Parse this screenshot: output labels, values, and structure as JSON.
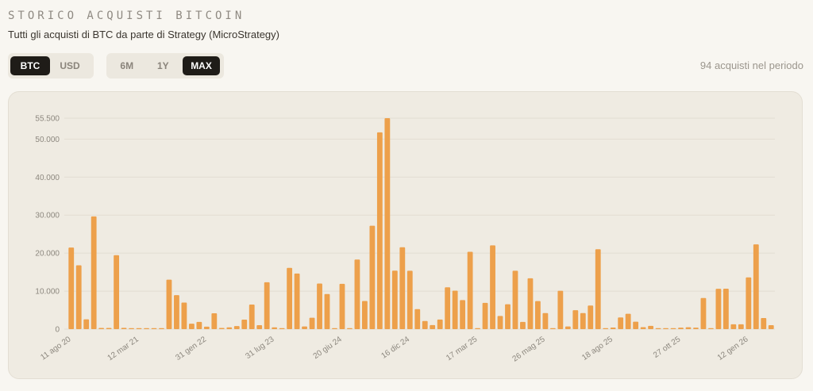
{
  "header": {
    "title": "STORICO ACQUISTI BITCOIN",
    "subtitle": "Tutti gli acquisti di BTC da parte di Strategy (MicroStrategy)"
  },
  "controls": {
    "unit": {
      "options": [
        "BTC",
        "USD"
      ],
      "selected": "BTC"
    },
    "range": {
      "options": [
        "6M",
        "1Y",
        "MAX"
      ],
      "selected": "MAX"
    }
  },
  "purchase_count": "94 acquisti nel periodo",
  "colors": {
    "bar": "#eda04b",
    "grid": "#e2ddd2",
    "active_button": "#1f1c18"
  },
  "chart_data": {
    "type": "bar",
    "title": "",
    "xlabel": "",
    "ylabel": "",
    "ylim": [
      0,
      55500
    ],
    "yticks": [
      0,
      10000,
      20000,
      30000,
      40000,
      50000,
      55500
    ],
    "ytick_labels": [
      "0",
      "10.000",
      "20.000",
      "30.000",
      "40.000",
      "50.000",
      "55.500"
    ],
    "xtick_labels": [
      {
        "index": 0,
        "label": "11 ago 20"
      },
      {
        "index": 9,
        "label": "12 mar 21"
      },
      {
        "index": 18,
        "label": "31 gen 22"
      },
      {
        "index": 27,
        "label": "31 lug 23"
      },
      {
        "index": 36,
        "label": "20 giu 24"
      },
      {
        "index": 45,
        "label": "16 dic 24"
      },
      {
        "index": 54,
        "label": "17 mar 25"
      },
      {
        "index": 63,
        "label": "26 mag 25"
      },
      {
        "index": 72,
        "label": "18 ago 25"
      },
      {
        "index": 81,
        "label": "27 ott 25"
      },
      {
        "index": 90,
        "label": "12 gen 26"
      }
    ],
    "grid": true,
    "series": [
      {
        "values": [
          21454,
          16796,
          2574,
          29646,
          314,
          314,
          19452,
          328,
          271,
          262,
          253,
          205,
          219,
          13005,
          8957,
          7002,
          1434,
          1914,
          660,
          4167,
          301,
          480,
          810,
          2500,
          6455,
          1045,
          12333,
          467,
          155,
          16130,
          14620,
          705,
          3000,
          12000,
          9245,
          169,
          11931,
          169,
          18300,
          7420,
          27200,
          51780,
          55500,
          15400,
          21550,
          15350,
          5262,
          2138,
          1070,
          2530,
          11000,
          10107,
          7633,
          20356,
          130,
          6911,
          22048,
          3459,
          6556,
          15355,
          1895,
          13390,
          7390,
          4225,
          245,
          10100,
          705,
          4980,
          4225,
          6220,
          21021,
          155,
          430,
          3081,
          4048,
          1955,
          525,
          850,
          196,
          220,
          190,
          390,
          487,
          397,
          8178,
          130,
          10624,
          10645,
          1287,
          1286,
          13627,
          22305,
          2932,
          1031
        ]
      }
    ]
  }
}
